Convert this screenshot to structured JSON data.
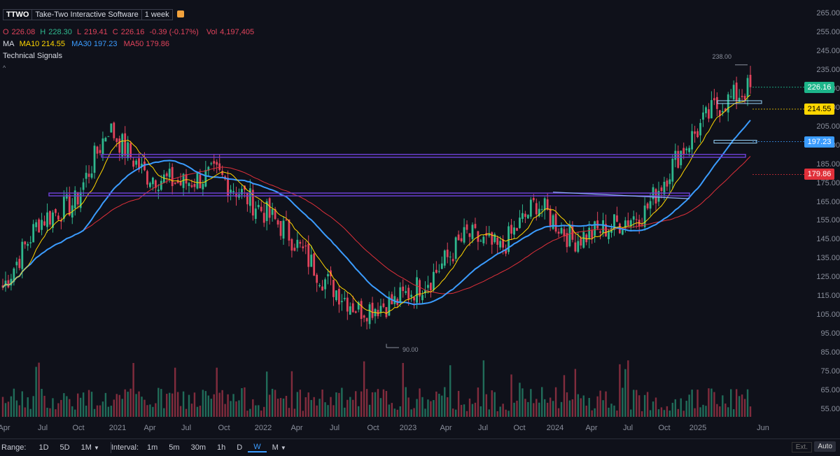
{
  "header": {
    "symbol": "TTWO",
    "company": "Take-Two Interactive Software",
    "interval": "1 week",
    "ohlc": {
      "o_label": "O",
      "o": "226.08",
      "h_label": "H",
      "h": "228.30",
      "l_label": "L",
      "l": "219.41",
      "c_label": "C",
      "c": "226.16",
      "change": "-0.39 (-0.17%)",
      "vol_label": "Vol",
      "vol": "4,197,405"
    },
    "ma": {
      "label": "MA",
      "ma10": "MA10 214.55",
      "ma30": "MA30 197.23",
      "ma50": "MA50 179.86"
    },
    "technical_signals": "Technical Signals"
  },
  "price_tags": [
    {
      "value": "226.16",
      "bg": "#1db58a",
      "fg": "#ffffff"
    },
    {
      "value": "214.55",
      "bg": "#ffd600",
      "fg": "#000000"
    },
    {
      "value": "197.23",
      "bg": "#3b9cff",
      "fg": "#ffffff"
    },
    {
      "value": "179.86",
      "bg": "#e0303a",
      "fg": "#ffffff"
    }
  ],
  "annotations": {
    "high": "238.00",
    "low": "90.00"
  },
  "y_axis": [
    "265.00",
    "255.00",
    "245.00",
    "235.00",
    "225.00",
    "215.00",
    "205.00",
    "195.00",
    "185.00",
    "175.00",
    "165.00",
    "155.00",
    "145.00",
    "135.00",
    "125.00",
    "115.00",
    "105.00",
    "95.00",
    "85.00",
    "75.00",
    "65.00",
    "55.00"
  ],
  "x_axis": [
    "Apr",
    "Jul",
    "Oct",
    "2021",
    "Apr",
    "Jul",
    "Oct",
    "2022",
    "Apr",
    "Jul",
    "Oct",
    "2023",
    "Apr",
    "Jul",
    "Oct",
    "2024",
    "Apr",
    "Jul",
    "Oct",
    "2025",
    "Jun"
  ],
  "colors": {
    "up": "#2fb88e",
    "down": "#e0435b",
    "ma10": "#ffd600",
    "ma30": "#3b9cff",
    "ma50": "#e0303a",
    "trend": "#6a3fd0",
    "bg": "#0f111a"
  },
  "toolbar": {
    "range_label": "Range:",
    "ranges": [
      "1D",
      "5D",
      "1M"
    ],
    "interval_label": "Interval:",
    "intervals": [
      "1m",
      "5m",
      "30m",
      "1h",
      "D",
      "W",
      "M"
    ],
    "selected_interval": "W",
    "ext": "Ext.",
    "auto": "Auto"
  },
  "chart_data": {
    "type": "candlestick",
    "weekly_close_approx": [
      {
        "x": "2020-04",
        "y": 120
      },
      {
        "x": "2020-07",
        "y": 155
      },
      {
        "x": "2020-10",
        "y": 165
      },
      {
        "x": "2021-01",
        "y": 205
      },
      {
        "x": "2021-04",
        "y": 180
      },
      {
        "x": "2021-07",
        "y": 175
      },
      {
        "x": "2021-10",
        "y": 180
      },
      {
        "x": "2022-01",
        "y": 165
      },
      {
        "x": "2022-04",
        "y": 150
      },
      {
        "x": "2022-07",
        "y": 125
      },
      {
        "x": "2022-10",
        "y": 108
      },
      {
        "x": "2023-01",
        "y": 112
      },
      {
        "x": "2023-04",
        "y": 125
      },
      {
        "x": "2023-07",
        "y": 148
      },
      {
        "x": "2023-10",
        "y": 140
      },
      {
        "x": "2024-01",
        "y": 165
      },
      {
        "x": "2024-04",
        "y": 145
      },
      {
        "x": "2024-07",
        "y": 152
      },
      {
        "x": "2024-10",
        "y": 160
      },
      {
        "x": "2025-01",
        "y": 190
      },
      {
        "x": "2025-04",
        "y": 215
      },
      {
        "x": "2025-05",
        "y": 226
      }
    ],
    "ylim": [
      50,
      268
    ],
    "ma_last": {
      "MA10": 214.55,
      "MA30": 197.23,
      "MA50": 179.86
    },
    "high": 238.0,
    "low": 90.0
  }
}
